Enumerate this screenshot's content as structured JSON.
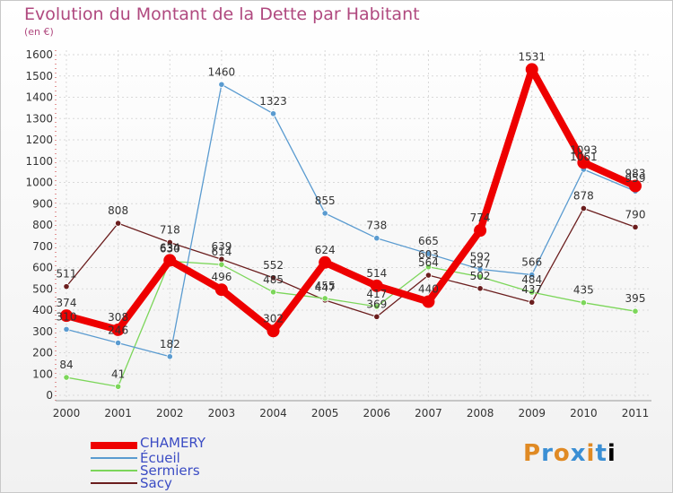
{
  "title": "Evolution du Montant de la Dette par Habitant",
  "unit": "(en €)",
  "logo": "Proxiti",
  "chart_data": {
    "type": "line",
    "title": "Evolution du Montant de la Dette par Habitant",
    "ylabel": "(en €)",
    "xlabel": "",
    "x": [
      "2000",
      "2001",
      "2002",
      "2003",
      "2004",
      "2005",
      "2006",
      "2007",
      "2008",
      "2009",
      "2010",
      "2011"
    ],
    "ylim": [
      0,
      1600
    ],
    "yticks": [
      0,
      100,
      200,
      300,
      400,
      500,
      600,
      700,
      800,
      900,
      1000,
      1100,
      1200,
      1300,
      1400,
      1500,
      1600
    ],
    "grid": true,
    "legend_position": "bottom-left",
    "series": [
      {
        "name": "Sacy",
        "color": "#6b1e1e",
        "values": [
          511,
          808,
          718,
          639,
          552,
          447,
          369,
          564,
          502,
          437,
          878,
          790
        ]
      },
      {
        "name": "Sermiers",
        "color": "#7cd65a",
        "values": [
          84,
          41,
          630,
          614,
          485,
          455,
          417,
          603,
          557,
          484,
          435,
          395
        ]
      },
      {
        "name": "Écueil",
        "color": "#5a9bd0",
        "values": [
          310,
          246,
          182,
          1460,
          1323,
          855,
          738,
          665,
          592,
          566,
          1061,
          959
        ]
      },
      {
        "name": "CHAMERY",
        "color": "#ee0000",
        "values": [
          374,
          308,
          634,
          496,
          302,
          624,
          514,
          440,
          774,
          1531,
          1093,
          983
        ]
      }
    ],
    "labels": {
      "Sacy": [
        "511",
        "808",
        "718",
        "639",
        "552",
        "447",
        "369",
        "564",
        "502",
        "437",
        "878",
        "790"
      ],
      "Sermiers": [
        "84",
        "41",
        "630",
        "614",
        "485",
        "455",
        "417",
        "603",
        "557",
        "484",
        "435",
        "395"
      ],
      "Écueil": [
        "310",
        "246",
        "182",
        "1460",
        "1323",
        "855",
        "738",
        "665",
        "592",
        "566",
        "1061",
        "959"
      ],
      "CHAMERY": [
        "374",
        "308",
        "634",
        "496",
        "302",
        "624",
        "514",
        "440",
        "774",
        "1531",
        "1093",
        "983"
      ]
    }
  },
  "legend": [
    {
      "name": "CHAMERY",
      "color": "#ee0000"
    },
    {
      "name": "Écueil",
      "color": "#5a9bd0"
    },
    {
      "name": "Sermiers",
      "color": "#7cd65a"
    },
    {
      "name": "Sacy",
      "color": "#6b1e1e"
    }
  ]
}
